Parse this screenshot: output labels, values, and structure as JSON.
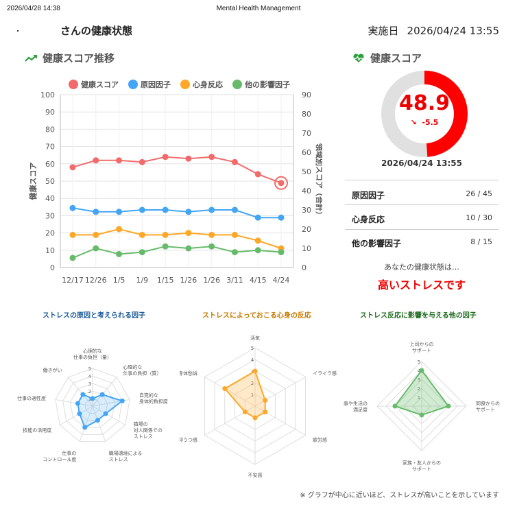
{
  "topbar": {
    "timestamp": "2026/04/28 14:38",
    "title": "Mental Health Management"
  },
  "header": {
    "patient_suffix": "さんの健康状態",
    "exec_label": "実施日",
    "exec_date": "2026/04/24 13:55"
  },
  "trend": {
    "title": "健康スコア推移",
    "icon": "trend-line-icon"
  },
  "score_panel": {
    "title": "健康スコア",
    "icon": "heart-pulse-icon",
    "score": "48.9",
    "delta": "-5.5",
    "delta_icon": "arrow-down-right-icon",
    "score_fraction": 0.489,
    "date": "2026/04/24 13:55",
    "rows": [
      {
        "label": "原因因子",
        "value": "26 / 45"
      },
      {
        "label": "心身反応",
        "value": "10 / 30"
      },
      {
        "label": "他の影響因子",
        "value": "8 / 15"
      }
    ],
    "status_question": "あなたの健康状態は…",
    "status_value": "高いストレスです",
    "colors": {
      "gauge": "#ff0000",
      "track": "#e0e0e0"
    }
  },
  "chart_data": {
    "type": "line",
    "categories": [
      "12/17",
      "12/26",
      "1/5",
      "1/9",
      "1/15",
      "1/26",
      "1/26",
      "3/11",
      "4/15",
      "4/24"
    ],
    "ylabel": "健康スコア",
    "ylabel_right": "領域別スコア（合計）",
    "ylim": [
      0,
      100
    ],
    "ylim_right": [
      0,
      90
    ],
    "y_ticks": [
      0,
      10,
      20,
      30,
      40,
      50,
      60,
      70,
      80,
      90,
      100
    ],
    "y_ticks_right": [
      0,
      10,
      20,
      30,
      40,
      50,
      60,
      70,
      80,
      90
    ],
    "grid": true,
    "legend": "top",
    "series": [
      {
        "name": "健康スコア",
        "axis": "left",
        "color": "#f26b6b",
        "values": [
          58,
          62,
          62,
          61,
          64,
          63,
          64,
          61,
          54,
          48.9
        ]
      },
      {
        "name": "原因因子",
        "axis": "right",
        "color": "#42a5f5",
        "values": [
          31,
          29,
          29,
          30,
          30,
          29,
          30,
          30,
          26,
          26
        ]
      },
      {
        "name": "心身反応",
        "axis": "right",
        "color": "#ffa726",
        "values": [
          17,
          17,
          20,
          17,
          17,
          18,
          17,
          17,
          14,
          10
        ]
      },
      {
        "name": "他の影響因子",
        "axis": "right",
        "color": "#66bb6a",
        "values": [
          5,
          10,
          7,
          8,
          11,
          10,
          11,
          8,
          9,
          8
        ]
      }
    ]
  },
  "radars": [
    {
      "title": "ストレスの原因と考えられる因子",
      "color": "#1a5a9a",
      "stroke": "#42a5f5",
      "fill": "rgba(66,165,245,0.2)",
      "max": 5,
      "ticks": [
        "1",
        "2",
        "3",
        "4",
        "5"
      ],
      "axes": [
        "心理的な\n仕事の負担（量）",
        "心理的な\n仕事の負担（質）",
        "自覚的な\n身体的負担度",
        "職場の\n対人関係での\nストレス",
        "職場環境による\nストレス",
        "仕事の\nコントロール度",
        "技能の活用度",
        "仕事の適性度",
        "働きがい"
      ],
      "values": [
        1,
        2,
        4,
        2,
        2,
        3,
        2,
        2,
        2
      ]
    },
    {
      "title": "ストレスによっておこる心身の反応",
      "color": "#c77b00",
      "stroke": "#ffa726",
      "fill": "rgba(255,183,77,0.3)",
      "max": 5,
      "ticks": [
        "1",
        "2",
        "3",
        "4",
        "5"
      ],
      "axes": [
        "活気",
        "イライラ感",
        "疲労感",
        "不安感",
        "抑うつ感",
        "身体愁訴"
      ],
      "values": [
        3,
        1,
        1,
        1,
        1,
        3
      ]
    },
    {
      "title": "ストレス反応に影響を与える他の因子",
      "color": "#1e6b1e",
      "stroke": "#66bb6a",
      "fill": "rgba(102,187,106,0.3)",
      "max": 5,
      "ticks": [
        "1",
        "2",
        "3",
        "4",
        "5"
      ],
      "axes": [
        "上司からの\nサポート",
        "同僚からの\nサポート",
        "家族・友人からの\nサポート",
        "仕事や生活の\n満足度"
      ],
      "values": [
        4,
        3,
        1,
        3
      ]
    }
  ],
  "footnote": "※ グラフが中心に近いほど、ストレスが高いことを示しています"
}
